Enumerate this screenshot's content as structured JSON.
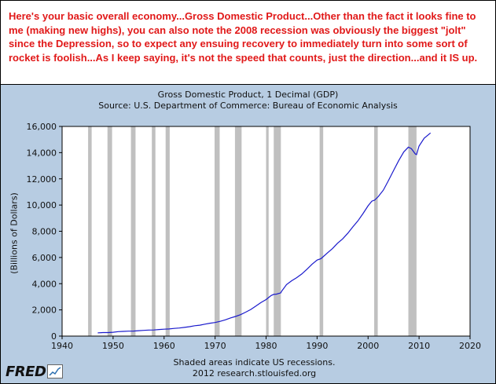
{
  "annotation": "Here's your basic overall economy...Gross Domestic Product...Other than the fact it looks fine to me (making new highs), you can also note the 2008 recession was obviously the biggest \"jolt\" since the Depression, so to expect any ensuing recovery to immediately turn into some sort of rocket is foolish...As I keep saying, it's not the speed that counts, just the direction...and it IS up.",
  "footnote_lines": [
    "Shaded areas indicate US recessions.",
    "2012 research.stlouisfed.org"
  ],
  "logo_text": "FRED",
  "colors": {
    "annotation_text": "#e11919",
    "plot_background": "#ffffff",
    "frame_background": "#b7cce2",
    "series_line": "#1a1acc",
    "recession_shading": "#c0c0c0"
  },
  "chart_data": {
    "type": "line",
    "title": "Gross Domestic Product, 1 Decimal (GDP)",
    "subtitle": "Source: U.S. Department of Commerce: Bureau of Economic Analysis",
    "xlabel": "",
    "ylabel": "(Billions of Dollars)",
    "xlim": [
      1940,
      2020
    ],
    "ylim": [
      0,
      16000
    ],
    "x_ticks": [
      "1940",
      "1950",
      "1960",
      "1970",
      "1980",
      "1990",
      "2000",
      "2010",
      "2020"
    ],
    "y_ticks": [
      "0",
      "2,000",
      "4,000",
      "6,000",
      "8,000",
      "10,000",
      "12,000",
      "14,000",
      "16,000"
    ],
    "grid": false,
    "legend": "none",
    "recessions": [
      [
        1945.1,
        1945.8
      ],
      [
        1948.9,
        1949.8
      ],
      [
        1953.5,
        1954.4
      ],
      [
        1957.6,
        1958.3
      ],
      [
        1960.3,
        1961.1
      ],
      [
        1969.9,
        1970.9
      ],
      [
        1973.9,
        1975.2
      ],
      [
        1980.0,
        1980.5
      ],
      [
        1981.5,
        1982.9
      ],
      [
        1990.5,
        1991.2
      ],
      [
        2001.2,
        2001.9
      ],
      [
        2007.9,
        2009.5
      ]
    ],
    "series": [
      {
        "x": [
          1947.0,
          1948.0,
          1949.0,
          1950.0,
          1951.0,
          1952.0,
          1953.0,
          1954.0,
          1955.0,
          1956.0,
          1957.0,
          1958.0,
          1959.0,
          1960.0,
          1961.0,
          1962.0,
          1963.0,
          1964.0,
          1965.0,
          1966.0,
          1967.0,
          1968.0,
          1969.0,
          1970.0,
          1971.0,
          1972.0,
          1973.0,
          1974.0,
          1975.0,
          1976.0,
          1977.0,
          1978.0,
          1979.0,
          1980.0,
          1981.0,
          1981.5,
          1982.0,
          1982.9,
          1983.0,
          1984.0,
          1985.0,
          1986.0,
          1987.0,
          1988.0,
          1989.0,
          1990.0,
          1990.75,
          1991.0,
          1992.0,
          1993.0,
          1994.0,
          1995.0,
          1996.0,
          1997.0,
          1998.0,
          1999.0,
          2000.0,
          2000.75,
          2001.25,
          2002.0,
          2003.0,
          2004.0,
          2005.0,
          2006.0,
          2007.0,
          2007.9,
          2008.5,
          2009.25,
          2009.5,
          2010.0,
          2011.0,
          2012.25
        ],
        "y": [
          244,
          269,
          267,
          294,
          339,
          358,
          380,
          381,
          415,
          438,
          462,
          468,
          506,
          526,
          545,
          585,
          618,
          664,
          720,
          789,
          834,
          910,
          985,
          1039,
          1127,
          1238,
          1382,
          1500,
          1638,
          1825,
          2030,
          2294,
          2562,
          2789,
          3100,
          3180,
          3200,
          3300,
          3400,
          3930,
          4220,
          4460,
          4740,
          5100,
          5480,
          5800,
          5900,
          5990,
          6340,
          6670,
          7085,
          7415,
          7840,
          8330,
          8790,
          9350,
          9950,
          10300,
          10370,
          10640,
          11140,
          11870,
          12640,
          13390,
          14060,
          14420,
          14300,
          13900,
          13850,
          14500,
          15100,
          15500
        ]
      }
    ]
  }
}
